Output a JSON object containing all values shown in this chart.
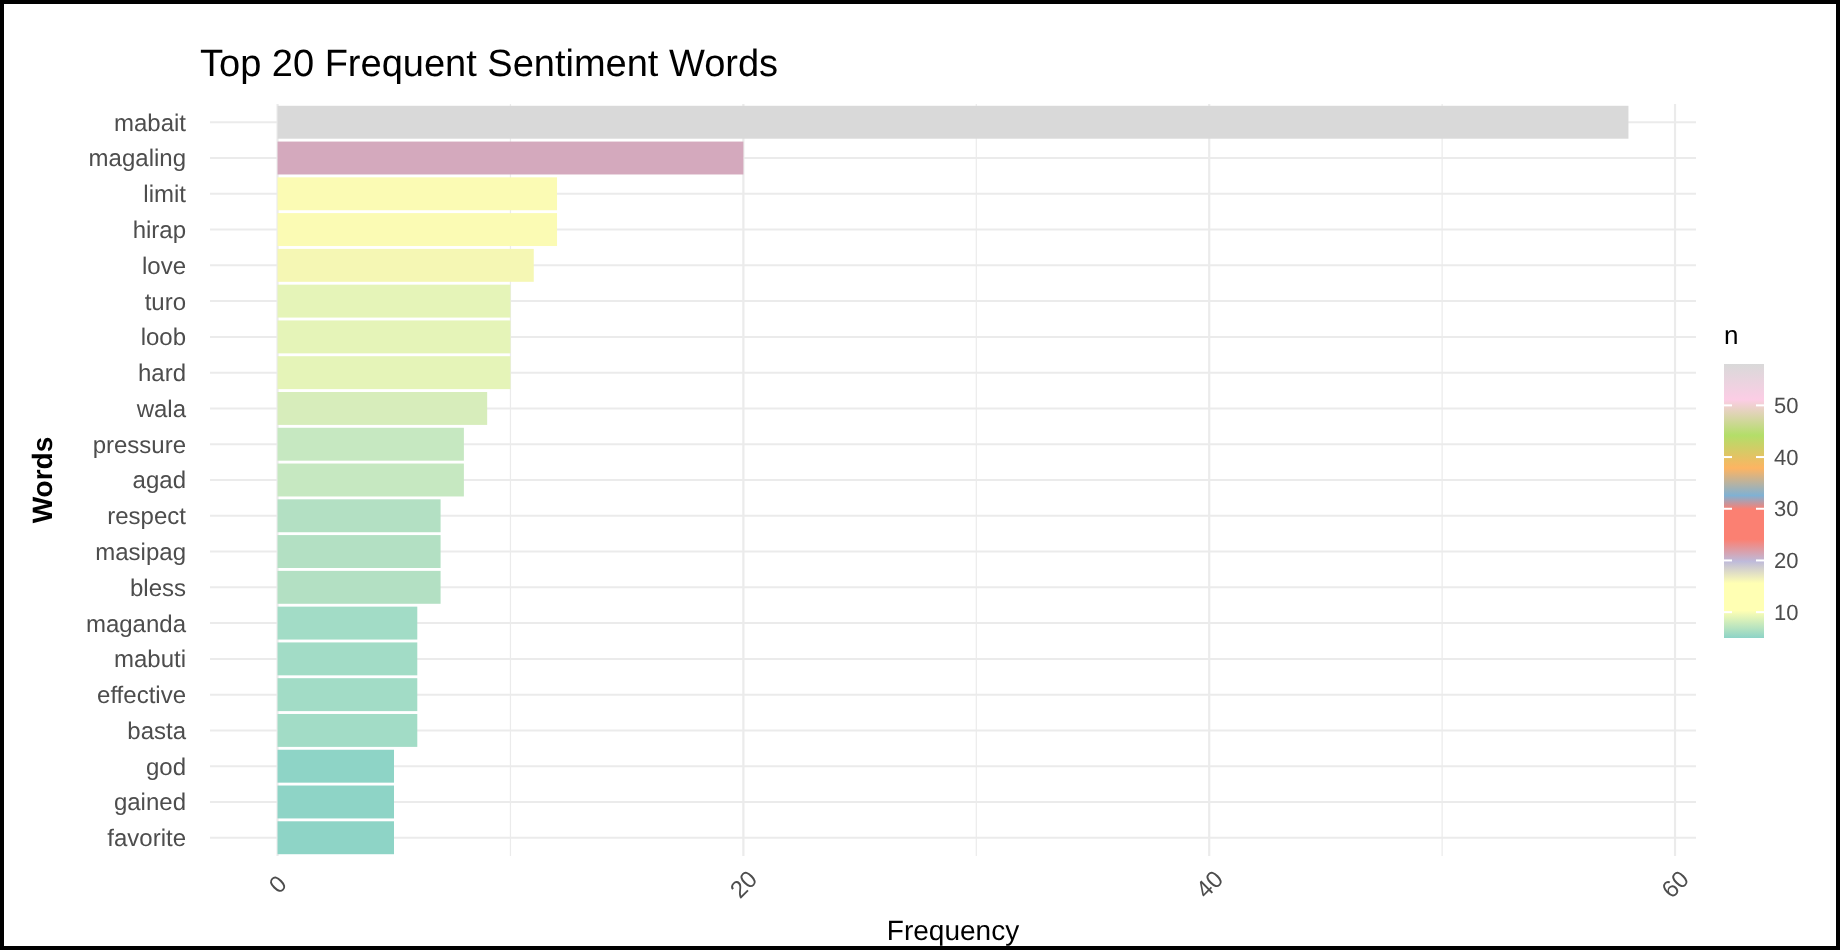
{
  "chart_data": {
    "type": "bar",
    "orientation": "horizontal",
    "title": "Top 20 Frequent Sentiment Words",
    "xlabel": "Frequency",
    "ylabel": "Words",
    "categories": [
      "mabait",
      "magaling",
      "limit",
      "hirap",
      "love",
      "turo",
      "loob",
      "hard",
      "wala",
      "pressure",
      "agad",
      "respect",
      "masipag",
      "bless",
      "maganda",
      "mabuti",
      "effective",
      "basta",
      "god",
      "gained",
      "favorite"
    ],
    "values": [
      58,
      20,
      12,
      12,
      11,
      10,
      10,
      10,
      9,
      8,
      8,
      7,
      7,
      7,
      6,
      6,
      6,
      6,
      5,
      5,
      5
    ],
    "colors": [
      "#d9d9d9",
      "#d4a9bd",
      "#fbfbb4",
      "#fbfbb4",
      "#f5f7b4",
      "#e5f4b8",
      "#e5f4b8",
      "#e5f4b8",
      "#d7edbb",
      "#c6e8c1",
      "#c6e8c1",
      "#b3e0c3",
      "#b3e0c3",
      "#b3e0c3",
      "#a2dcc6",
      "#a2dcc6",
      "#a2dcc6",
      "#a2dcc6",
      "#8ed4c6",
      "#8ed4c6",
      "#8ed4c6"
    ],
    "xlim": [
      -2.9,
      60.9
    ],
    "xticks": [
      0,
      {
        "value": 10,
        "label": null
      },
      20,
      {
        "value": 30,
        "label": null
      },
      40,
      {
        "value": 50,
        "label": null
      },
      60
    ],
    "grid": true,
    "clabel": "n",
    "clim": [
      5,
      58
    ],
    "cticks": [
      10,
      20,
      30,
      40,
      50
    ]
  }
}
